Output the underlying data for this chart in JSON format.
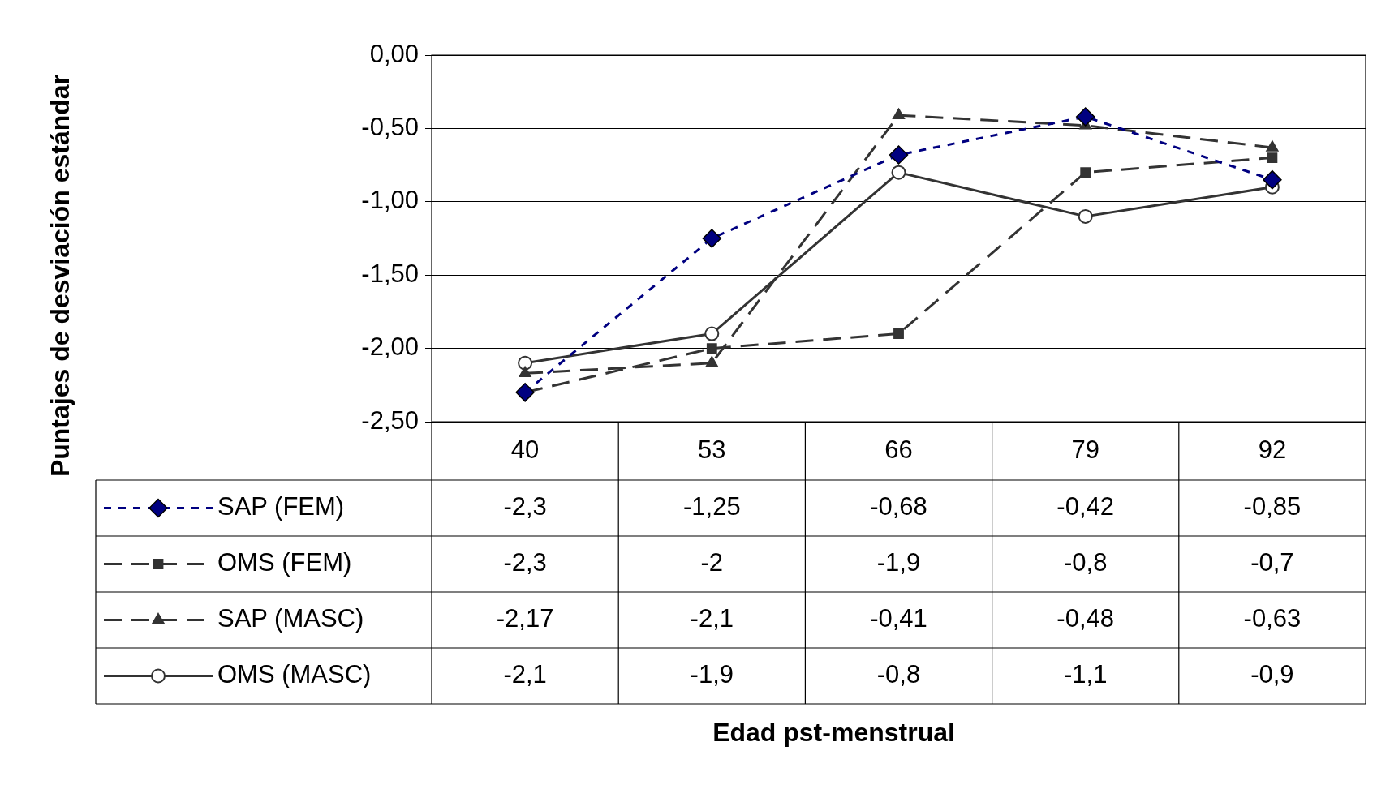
{
  "chart_data": {
    "type": "line",
    "annotations": [
      "Edad pst-menstrual",
      "Puntajes de desviación estándar"
    ],
    "categories": [
      "40",
      "53",
      "66",
      "79",
      "92"
    ],
    "ylim": [
      -2.5,
      0
    ],
    "yticks": [
      {
        "value": 0,
        "label": "0,00"
      },
      {
        "value": -0.5,
        "label": "-0,50"
      },
      {
        "value": -1,
        "label": "-1,00"
      },
      {
        "value": -1.5,
        "label": "-1,50"
      },
      {
        "value": -2,
        "label": "-2,00"
      },
      {
        "value": -2.5,
        "label": "-2,50"
      }
    ],
    "grid": "y",
    "legend": "bottom",
    "series": [
      {
        "name": "SAP (FEM)",
        "color": "#000080",
        "marker": "diamond",
        "line_style": "dotted",
        "values": [
          -2.3,
          -1.25,
          -0.68,
          -0.42,
          -0.85
        ],
        "value_labels": [
          "-2,3",
          "-1,25",
          "-0,68",
          "-0,42",
          "-0,85"
        ]
      },
      {
        "name": "OMS (FEM)",
        "color": "#333333",
        "marker": "square",
        "line_style": "dashed",
        "values": [
          -2.3,
          -2,
          -1.9,
          -0.8,
          -0.7
        ],
        "value_labels": [
          "-2,3",
          "-2",
          "-1,9",
          "-0,8",
          "-0,7"
        ]
      },
      {
        "name": "SAP (MASC)",
        "color": "#333333",
        "marker": "triangle",
        "line_style": "dashed",
        "values": [
          -2.17,
          -2.1,
          -0.41,
          -0.48,
          -0.63
        ],
        "value_labels": [
          "-2,17",
          "-2,1",
          "-0,41",
          "-0,48",
          "-0,63"
        ]
      },
      {
        "name": "OMS (MASC)",
        "color": "#333333",
        "marker": "circle",
        "line_style": "solid",
        "values": [
          -2.1,
          -1.9,
          -0.8,
          -1.1,
          -0.9
        ],
        "value_labels": [
          "-2,1",
          "-1,9",
          "-0,8",
          "-1,1",
          "-0,9"
        ]
      }
    ]
  }
}
